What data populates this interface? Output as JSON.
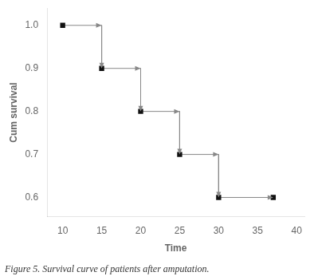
{
  "chart_data": {
    "type": "line",
    "xlabel": "Time",
    "ylabel": "Cum survival",
    "caption": "Figure 5. Survival curve of patients after amputation.",
    "series": [
      {
        "type": "line",
        "marker": "arrow",
        "line_style": "solid",
        "color": "#888888",
        "x": [
          10,
          15,
          15,
          20,
          20,
          25,
          25,
          30,
          30,
          37
        ],
        "values": [
          1.0,
          1.0,
          0.9,
          0.9,
          0.8,
          0.8,
          0.7,
          0.7,
          0.6,
          0.6
        ]
      },
      {
        "type": "scatter",
        "marker": "square",
        "color": "#111111",
        "x": [
          10,
          15,
          20,
          25,
          30,
          37
        ],
        "values": [
          1.0,
          0.9,
          0.8,
          0.7,
          0.6,
          0.6
        ]
      }
    ],
    "xlim": [
      8,
      41
    ],
    "ylim": [
      0.555,
      1.04
    ],
    "xticks": [
      10,
      15,
      20,
      25,
      30,
      35,
      40
    ],
    "yticks": [
      0.6,
      0.7,
      0.8,
      0.9,
      {
        "value": 1.0,
        "label": "1.0"
      }
    ],
    "grid": false
  }
}
